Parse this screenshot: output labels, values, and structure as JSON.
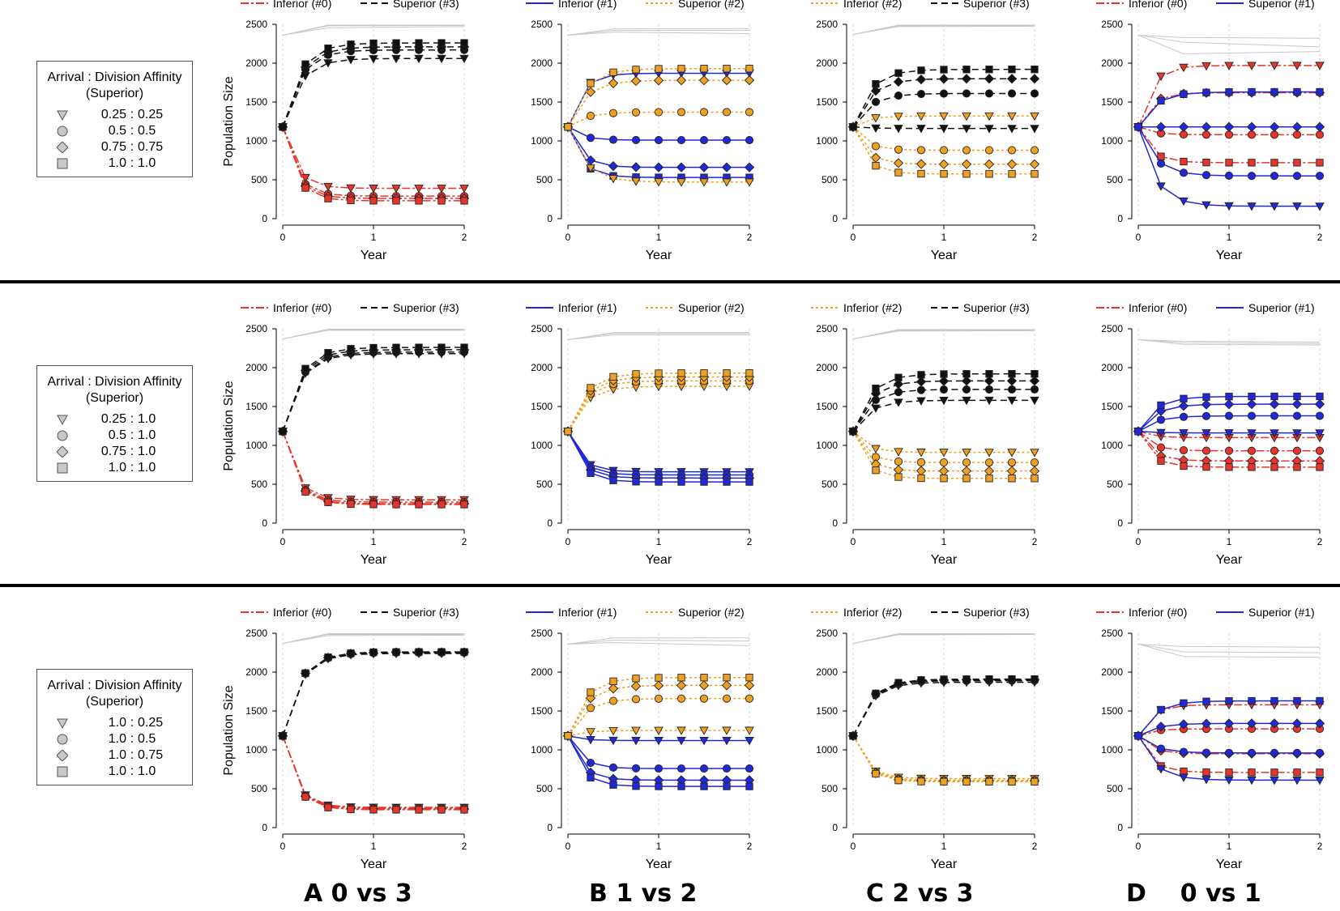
{
  "y_label": "Population Size",
  "x_label": "Year",
  "x_ticks": [
    "0",
    "1",
    "2"
  ],
  "y_ticks": [
    "0",
    "500",
    "1000",
    "1500",
    "2000",
    "2500"
  ],
  "colors": {
    "t0": "#e8342a",
    "t1": "#2128d8",
    "t2": "#f0a020",
    "t3": "#111111",
    "envelope": "#c8c8c8"
  },
  "column_labels": [
    {
      "letter": "A",
      "text": "0 vs 3"
    },
    {
      "letter": "B",
      "text": "1 vs 2"
    },
    {
      "letter": "C",
      "text": "2 vs 3"
    },
    {
      "letter": "D",
      "text": "0 vs 1"
    }
  ],
  "legends": [
    {
      "title_line1": "Arrival : Division Affinity",
      "title_line2": "(Superior)",
      "entries": [
        {
          "symbol": "triangle-down",
          "a": "0.25",
          "b": "0.25"
        },
        {
          "symbol": "circle",
          "a": "0.5",
          "b": "0.5"
        },
        {
          "symbol": "diamond",
          "a": "0.75",
          "b": "0.75"
        },
        {
          "symbol": "square",
          "a": "1.0",
          "b": "1.0"
        }
      ]
    },
    {
      "title_line1": "Arrival : Division Affinity",
      "title_line2": "(Superior)",
      "entries": [
        {
          "symbol": "triangle-down",
          "a": "0.25",
          "b": "1.0"
        },
        {
          "symbol": "circle",
          "a": "0.5",
          "b": "1.0"
        },
        {
          "symbol": "diamond",
          "a": "0.75",
          "b": "1.0"
        },
        {
          "symbol": "square",
          "a": "1.0",
          "b": "1.0"
        }
      ]
    },
    {
      "title_line1": "Arrival : Division Affinity",
      "title_line2": "(Superior)",
      "entries": [
        {
          "symbol": "triangle-down",
          "a": "1.0",
          "b": "0.25"
        },
        {
          "symbol": "circle",
          "a": "1.0",
          "b": "0.5"
        },
        {
          "symbol": "diamond",
          "a": "1.0",
          "b": "0.75"
        },
        {
          "symbol": "square",
          "a": "1.0",
          "b": "1.0"
        }
      ]
    }
  ],
  "chart_data": {
    "type": "line",
    "x": [
      0,
      0.25,
      0.5,
      0.75,
      1.0,
      1.25,
      1.5,
      1.75,
      2.0
    ],
    "xlim": [
      0,
      2
    ],
    "ylim": [
      0,
      2500
    ],
    "xlabel": "Year",
    "ylabel": "Population Size",
    "marker_order": [
      "triangle-down",
      "circle",
      "diamond",
      "square"
    ],
    "panels": [
      {
        "row": 0,
        "col": 0,
        "inferior": {
          "label": "Inferior (#0)",
          "type": "t0"
        },
        "superior": {
          "label": "Superior (#3)",
          "type": "t3"
        },
        "inf_final": [
          390,
          290,
          260,
          230
        ],
        "sup_final": [
          2060,
          2170,
          2210,
          2260
        ],
        "envelope": [
          [
            2360,
            2455,
            2470
          ],
          [
            2360,
            2480,
            2485
          ],
          [
            2360,
            2490,
            2490
          ]
        ]
      },
      {
        "row": 0,
        "col": 1,
        "inferior": {
          "label": "Inferior (#1)",
          "type": "t1"
        },
        "superior": {
          "label": "Superior (#2)",
          "type": "t2"
        },
        "inf_final": [
          1870,
          1010,
          660,
          530
        ],
        "sup_final": [
          470,
          1370,
          1780,
          1930
        ],
        "envelope": [
          [
            2360,
            2400,
            2380
          ],
          [
            2360,
            2420,
            2420
          ],
          [
            2360,
            2440,
            2445
          ]
        ]
      },
      {
        "row": 0,
        "col": 2,
        "inferior": {
          "label": "Inferior (#2)",
          "type": "t2"
        },
        "superior": {
          "label": "Superior (#3)",
          "type": "t3"
        },
        "inf_final": [
          1320,
          880,
          700,
          575
        ],
        "sup_final": [
          1160,
          1610,
          1800,
          1920
        ],
        "envelope": [
          [
            2370,
            2470,
            2475
          ],
          [
            2370,
            2480,
            2485
          ],
          [
            2370,
            2490,
            2490
          ]
        ]
      },
      {
        "row": 0,
        "col": 3,
        "inferior": {
          "label": "Inferior (#0)",
          "type": "t0"
        },
        "superior": {
          "label": "Superior (#1)",
          "type": "t1"
        },
        "inf_final": [
          1970,
          1080,
          1620,
          720
        ],
        "sup_final": [
          160,
          550,
          1180,
          1630
        ],
        "envelope": [
          [
            2360,
            2120,
            2150
          ],
          [
            2360,
            2270,
            2210
          ],
          [
            2360,
            2330,
            2320
          ]
        ]
      },
      {
        "row": 1,
        "col": 0,
        "inferior": {
          "label": "Inferior (#0)",
          "type": "t0"
        },
        "superior": {
          "label": "Superior (#3)",
          "type": "t3"
        },
        "inf_final": [
          300,
          270,
          250,
          240
        ],
        "sup_final": [
          2180,
          2200,
          2230,
          2260
        ],
        "envelope": [
          [
            2370,
            2480,
            2480
          ],
          [
            2370,
            2490,
            2490
          ],
          [
            2370,
            2495,
            2495
          ]
        ]
      },
      {
        "row": 1,
        "col": 1,
        "inferior": {
          "label": "Inferior (#1)",
          "type": "t1"
        },
        "superior": {
          "label": "Superior (#2)",
          "type": "t2"
        },
        "inf_final": [
          660,
          620,
          580,
          530
        ],
        "sup_final": [
          1760,
          1830,
          1880,
          1930
        ],
        "envelope": [
          [
            2360,
            2420,
            2420
          ],
          [
            2360,
            2440,
            2440
          ],
          [
            2360,
            2450,
            2450
          ]
        ]
      },
      {
        "row": 1,
        "col": 2,
        "inferior": {
          "label": "Inferior (#2)",
          "type": "t2"
        },
        "superior": {
          "label": "Superior (#3)",
          "type": "t3"
        },
        "inf_final": [
          910,
          780,
          670,
          575
        ],
        "sup_final": [
          1580,
          1720,
          1830,
          1920
        ],
        "envelope": [
          [
            2370,
            2470,
            2475
          ],
          [
            2370,
            2480,
            2485
          ],
          [
            2370,
            2490,
            2490
          ]
        ]
      },
      {
        "row": 1,
        "col": 3,
        "inferior": {
          "label": "Inferior (#0)",
          "type": "t0"
        },
        "superior": {
          "label": "Superior (#1)",
          "type": "t1"
        },
        "inf_final": [
          1100,
          930,
          800,
          720
        ],
        "sup_final": [
          1160,
          1380,
          1530,
          1630
        ],
        "envelope": [
          [
            2360,
            2300,
            2290
          ],
          [
            2360,
            2320,
            2310
          ],
          [
            2360,
            2340,
            2330
          ]
        ]
      },
      {
        "row": 2,
        "col": 0,
        "inferior": {
          "label": "Inferior (#0)",
          "type": "t0"
        },
        "superior": {
          "label": "Superior (#3)",
          "type": "t3"
        },
        "inf_final": [
          260,
          250,
          240,
          230
        ],
        "sup_final": [
          2240,
          2250,
          2255,
          2260
        ],
        "envelope": [
          [
            2370,
            2470,
            2475
          ],
          [
            2370,
            2485,
            2485
          ],
          [
            2370,
            2495,
            2495
          ]
        ]
      },
      {
        "row": 2,
        "col": 1,
        "inferior": {
          "label": "Inferior (#1)",
          "type": "t1"
        },
        "superior": {
          "label": "Superior (#2)",
          "type": "t2"
        },
        "inf_final": [
          1120,
          760,
          610,
          530
        ],
        "sup_final": [
          1250,
          1660,
          1830,
          1930
        ],
        "envelope": [
          [
            2360,
            2380,
            2340
          ],
          [
            2360,
            2410,
            2400
          ],
          [
            2360,
            2440,
            2440
          ]
        ]
      },
      {
        "row": 2,
        "col": 2,
        "inferior": {
          "label": "Inferior (#2)",
          "type": "t2"
        },
        "superior": {
          "label": "Superior (#3)",
          "type": "t3"
        },
        "inf_final": [
          630,
          610,
          600,
          590
        ],
        "sup_final": [
          1870,
          1890,
          1900,
          1910
        ],
        "envelope": [
          [
            2370,
            2480,
            2485
          ],
          [
            2370,
            2490,
            2490
          ],
          [
            2370,
            2495,
            2495
          ]
        ]
      },
      {
        "row": 2,
        "col": 3,
        "inferior": {
          "label": "Inferior (#0)",
          "type": "t0"
        },
        "superior": {
          "label": "Superior (#1)",
          "type": "t1"
        },
        "inf_final": [
          1580,
          1270,
          950,
          710
        ],
        "sup_final": [
          610,
          960,
          1340,
          1630
        ],
        "envelope": [
          [
            2360,
            2200,
            2190
          ],
          [
            2360,
            2260,
            2250
          ],
          [
            2360,
            2330,
            2320
          ]
        ]
      }
    ]
  }
}
